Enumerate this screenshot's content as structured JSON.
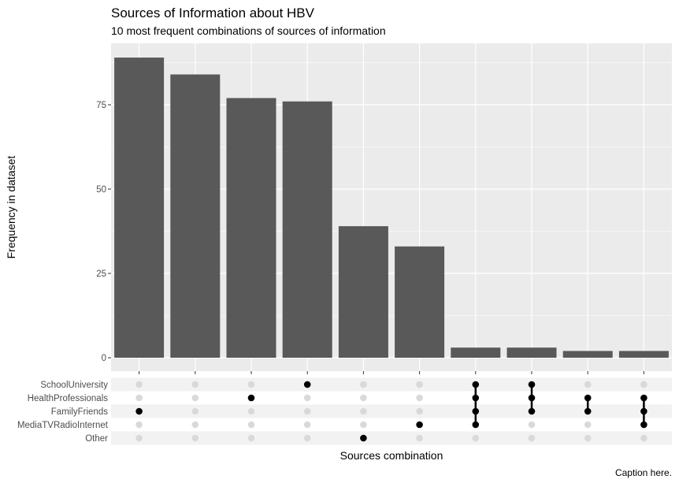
{
  "chart_data": {
    "type": "bar",
    "title": "Sources of Information about HBV",
    "subtitle": "10 most frequent combinations of sources of information",
    "xlabel": "Sources combination",
    "ylabel": "Frequency in dataset",
    "caption": "Caption here.",
    "ylim": [
      0,
      90
    ],
    "yticks": [
      0,
      25,
      50,
      75
    ],
    "grid": true,
    "sets": [
      "SchoolUniversity",
      "HealthProfessionals",
      "FamilyFriends",
      "MediaTVRadioInternet",
      "Other"
    ],
    "bars": [
      {
        "value": 89,
        "members": [
          "FamilyFriends"
        ]
      },
      {
        "value": 84,
        "members": []
      },
      {
        "value": 77,
        "members": [
          "HealthProfessionals"
        ]
      },
      {
        "value": 76,
        "members": [
          "SchoolUniversity"
        ]
      },
      {
        "value": 39,
        "members": [
          "Other"
        ]
      },
      {
        "value": 33,
        "members": [
          "MediaTVRadioInternet"
        ]
      },
      {
        "value": 3,
        "members": [
          "SchoolUniversity",
          "HealthProfessionals",
          "FamilyFriends",
          "MediaTVRadioInternet"
        ]
      },
      {
        "value": 3,
        "members": [
          "SchoolUniversity",
          "HealthProfessionals",
          "FamilyFriends"
        ]
      },
      {
        "value": 2,
        "members": [
          "HealthProfessionals",
          "FamilyFriends"
        ]
      },
      {
        "value": 2,
        "members": [
          "HealthProfessionals",
          "FamilyFriends",
          "MediaTVRadioInternet"
        ]
      }
    ],
    "colors": {
      "bar": "#595959",
      "panel": "#ebebeb",
      "grid": "#ffffff",
      "dot_on": "#000000",
      "dot_off": "#d9d9d9",
      "stripe": "#f2f2f2"
    }
  }
}
